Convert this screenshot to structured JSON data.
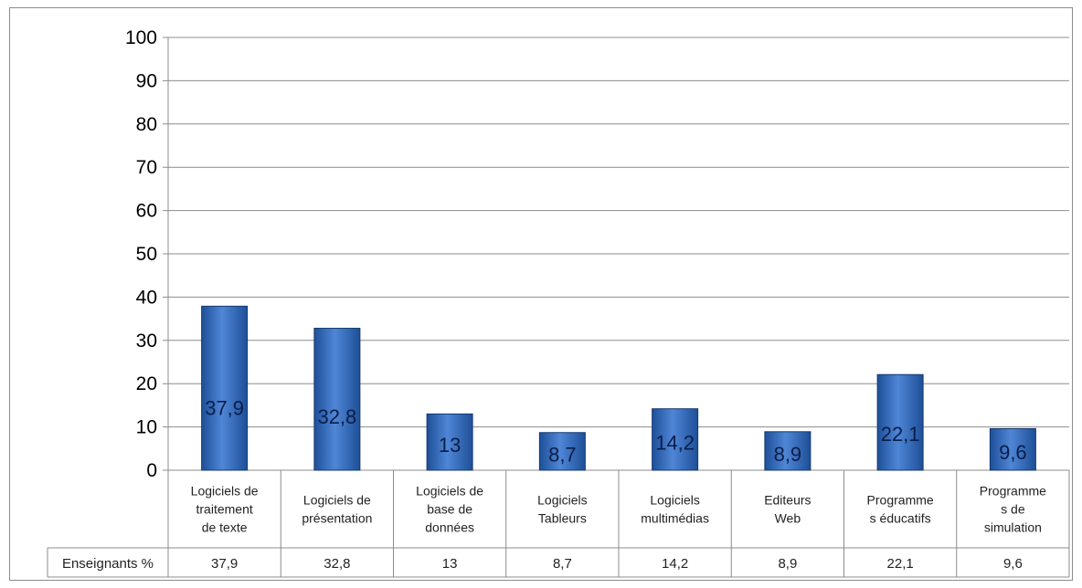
{
  "chart_data": {
    "type": "bar",
    "categories": [
      "Logiciels de traitement de texte",
      "Logiciels de présentation",
      "Logiciels de base de données",
      "Logiciels Tableurs",
      "Logiciels multimédias",
      "Editeurs Web",
      "Programmes éducatifs",
      "Programmes de simulation"
    ],
    "category_lines": [
      [
        "Logiciels de",
        "traitement",
        "de texte"
      ],
      [
        "Logiciels de",
        "présentation"
      ],
      [
        "Logiciels de",
        "base de",
        "données"
      ],
      [
        "Logiciels",
        "Tableurs"
      ],
      [
        "Logiciels",
        "multimédias"
      ],
      [
        "Editeurs",
        "Web"
      ],
      [
        "Programme",
        "s éducatifs"
      ],
      [
        "Programme",
        "s de",
        "simulation"
      ]
    ],
    "series": [
      {
        "name": "Enseignants %",
        "values": [
          37.9,
          32.8,
          13,
          8.7,
          14.2,
          8.9,
          22.1,
          9.6
        ],
        "labels": [
          "37,9",
          "32,8",
          "13",
          "8,7",
          "14,2",
          "8,9",
          "22,1",
          "9,6"
        ]
      }
    ],
    "yticks": [
      "0",
      "10",
      "20",
      "30",
      "40",
      "50",
      "60",
      "70",
      "80",
      "90",
      "100"
    ],
    "ylim": [
      0,
      100
    ],
    "grid": true,
    "data_table": true,
    "colors": {
      "bar_top": "#4f86d6",
      "bar_bottom": "#1e4f98",
      "grid": "#8c8c8c"
    }
  }
}
